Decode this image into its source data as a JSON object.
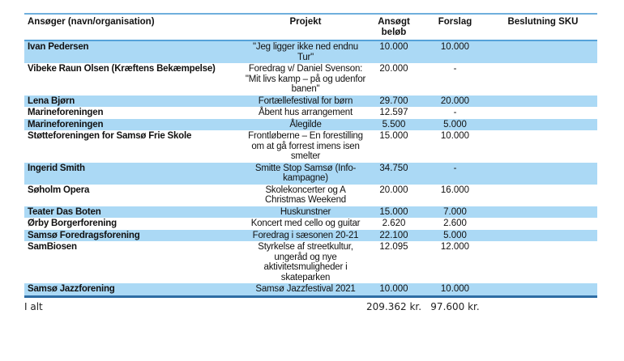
{
  "table": {
    "headers": [
      "Ansøger (navn/organisation)",
      "Projekt",
      "Ansøgt beløb",
      "Forslag",
      "Beslutning SKU"
    ],
    "rows": [
      {
        "ansoger": "Ivan Pedersen",
        "projekt": "\"Jeg ligger ikke ned endnu Tur\"",
        "ansogt": "10.000",
        "forslag": "10.000",
        "beslutning": "",
        "highlight": true
      },
      {
        "ansoger": "Vibeke Raun Olsen (Kræftens Bekæmpelse)",
        "projekt": "Foredrag v/ Daniel Svenson: \"Mit livs kamp – på og udenfor banen\"",
        "ansogt": "20.000",
        "forslag": "-",
        "beslutning": "",
        "highlight": false
      },
      {
        "ansoger": "Lena Bjørn",
        "projekt": "Fortællefestival for børn",
        "ansogt": "29.700",
        "forslag": "20.000",
        "beslutning": "",
        "highlight": true
      },
      {
        "ansoger": "Marineforeningen",
        "projekt": "Åbent hus arrangement",
        "ansogt": "12.597",
        "forslag": "-",
        "beslutning": "",
        "highlight": false
      },
      {
        "ansoger": "Marineforeningen",
        "projekt": "Ålegilde",
        "ansogt": "5.500",
        "forslag": "5.000",
        "beslutning": "",
        "highlight": true
      },
      {
        "ansoger": "Støtteforeningen for Samsø Frie Skole",
        "projekt": "Frontløberne – En forestilling om at gå forrest imens isen smelter",
        "ansogt": "15.000",
        "forslag": "10.000",
        "beslutning": "",
        "highlight": false
      },
      {
        "ansoger": "Ingerid Smith",
        "projekt": "Smitte Stop Samsø (Info-kampagne)",
        "ansogt": "34.750",
        "forslag": "-",
        "beslutning": "",
        "highlight": true
      },
      {
        "ansoger": "Søholm Opera",
        "projekt": "Skolekoncerter og A Christmas Weekend",
        "ansogt": "20.000",
        "forslag": "16.000",
        "beslutning": "",
        "highlight": false
      },
      {
        "ansoger": "Teater Das Boten",
        "projekt": "Huskunstner",
        "ansogt": "15.000",
        "forslag": "7.000",
        "beslutning": "",
        "highlight": true
      },
      {
        "ansoger": "Ørby Borgerforening",
        "projekt": "Koncert med cello og guitar",
        "ansogt": "2.620",
        "forslag": "2.600",
        "beslutning": "",
        "highlight": false
      },
      {
        "ansoger": "Samsø Foredragsforening",
        "projekt": "Foredrag i sæsonen 20-21",
        "ansogt": "22.100",
        "forslag": "5.000",
        "beslutning": "",
        "highlight": true
      },
      {
        "ansoger": "SamBiosen",
        "projekt": "Styrkelse af streetkultur, ungeråd og nye aktivitetsmuligheder i skateparken",
        "ansogt": "12.095",
        "forslag": "12.000",
        "beslutning": "",
        "highlight": false
      },
      {
        "ansoger": "Samsø Jazzforening",
        "projekt": "Samsø Jazzfestival 2021",
        "ansogt": "10.000",
        "forslag": "10.000",
        "beslutning": "",
        "highlight": true
      }
    ],
    "total": {
      "label": "I alt",
      "ansogt": "209.362 kr.",
      "forslag": "97.600 kr.",
      "beslutning": ""
    }
  },
  "colors": {
    "row_highlight": "#abd9f5",
    "header_rule": "#5ba3d9",
    "total_rule": "#2e6da4",
    "text": "#111111"
  }
}
